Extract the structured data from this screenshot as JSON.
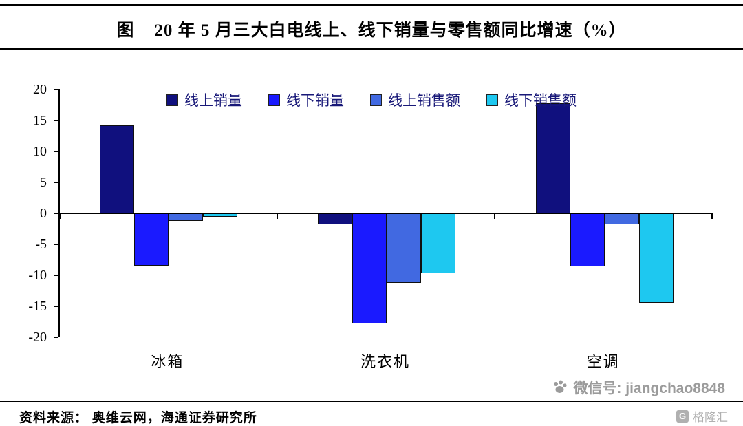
{
  "title": "图    20 年 5 月三大白电线上、线下销量与零售额同比增速（%）",
  "source": "资料来源： 奥维云网，海通证券研究所",
  "watermark": {
    "wechat": "微信号: jiangchao8848",
    "logo": "格隆汇",
    "color": "#9b9b9b"
  },
  "chart_data": {
    "type": "bar",
    "categories": [
      "冰箱",
      "洗衣机",
      "空调"
    ],
    "series": [
      {
        "name": "线上销量",
        "color": "#10107e",
        "values": [
          14.2,
          -1.8,
          17.8
        ]
      },
      {
        "name": "线下销量",
        "color": "#1a1aff",
        "values": [
          -8.4,
          -17.8,
          -8.5
        ]
      },
      {
        "name": "线上销售额",
        "color": "#4169e1",
        "values": [
          -1.2,
          -11.2,
          -1.8
        ]
      },
      {
        "name": "线下销售额",
        "color": "#1ec8f0",
        "values": [
          -0.5,
          -9.7,
          -14.4
        ]
      }
    ],
    "ylim": [
      -20,
      20
    ],
    "yticks": [
      20,
      15,
      10,
      5,
      0,
      -5,
      -10,
      -15,
      -20
    ],
    "legend_position": "top",
    "legend_text_color": "#181878",
    "grid": false
  }
}
